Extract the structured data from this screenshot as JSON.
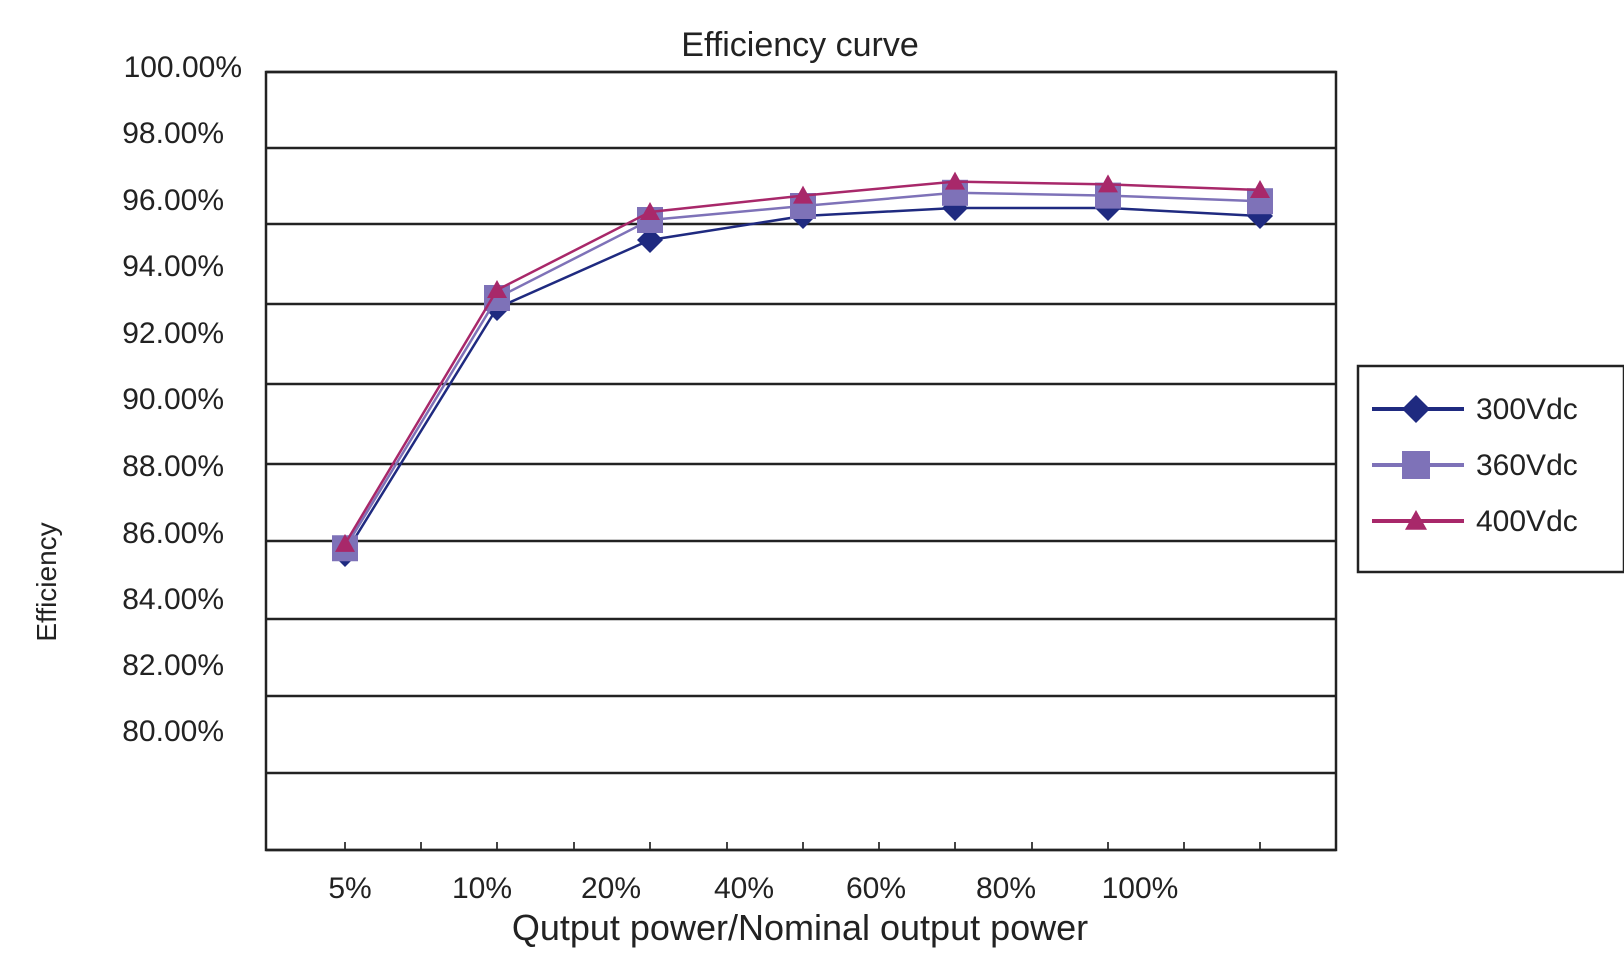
{
  "chart_data": {
    "type": "line",
    "title": "Efficiency curve",
    "xlabel": "Qutput power/Nominal output power",
    "ylabel": "Efficiency",
    "x_tick_labels": [
      "5%",
      "10%",
      "20%",
      "40%",
      "60%",
      "80%",
      "100%"
    ],
    "y_tick_labels": [
      "100.00%",
      "98.00%",
      "96.00%",
      "94.00%",
      "92.00%",
      "90.00%",
      "88.00%",
      "86.00%",
      "84.00%",
      "82.00%",
      "80.00%"
    ],
    "grid": true,
    "legend_position": "right",
    "series": [
      {
        "name": "300Vdc",
        "marker": "diamond",
        "color": "#1f2a80",
        "values": [
          85.1,
          91.9,
          94.6,
          95.4,
          95.8,
          95.8,
          95.4
        ]
      },
      {
        "name": "360Vdc",
        "marker": "square",
        "color": "#7e72b8",
        "values": [
          85.5,
          92.3,
          95.2,
          95.9,
          96.4,
          96.3,
          96.1
        ]
      },
      {
        "name": "400Vdc",
        "marker": "triangle",
        "color": "#a8286a",
        "values": [
          85.8,
          92.7,
          95.6,
          96.3,
          96.8,
          96.7,
          96.5
        ]
      }
    ]
  }
}
